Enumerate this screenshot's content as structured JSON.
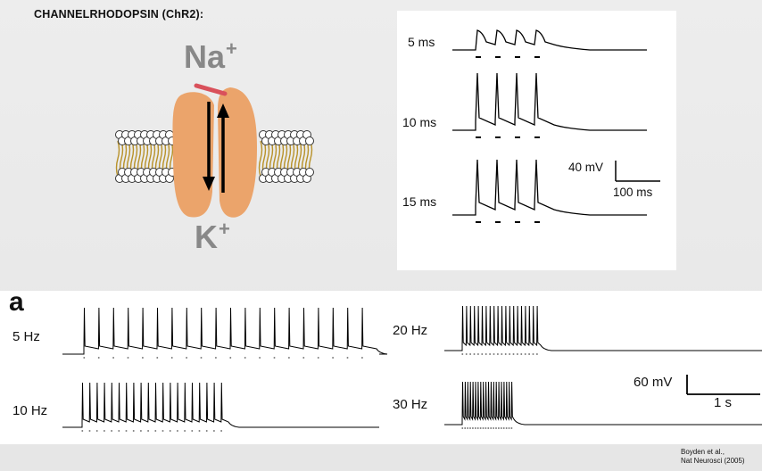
{
  "slide": {
    "title": "CHANNELRHODOPSIN (ChR2):",
    "ions": {
      "na": "Na",
      "k": "K",
      "charge": "+"
    },
    "colors": {
      "channel": "#eba46b",
      "gate": "#d9515b",
      "membrane_tail": "#b8922a"
    }
  },
  "figure_top": {
    "traces": [
      {
        "label": "5 ms"
      },
      {
        "label": "10 ms"
      },
      {
        "label": "15 ms"
      }
    ],
    "scale_bar": {
      "voltage": "40 mV",
      "time": "100 ms"
    }
  },
  "figure_bottom": {
    "panel_label": "a",
    "traces": [
      {
        "label": "5 Hz"
      },
      {
        "label": "10 Hz"
      },
      {
        "label": "20 Hz"
      },
      {
        "label": "30 Hz"
      }
    ],
    "scale_bar": {
      "voltage": "60 mV",
      "time": "1 s"
    }
  },
  "citation": {
    "line1": "Boyden et al.,",
    "line2": "Nat Neurosci (2005)"
  }
}
